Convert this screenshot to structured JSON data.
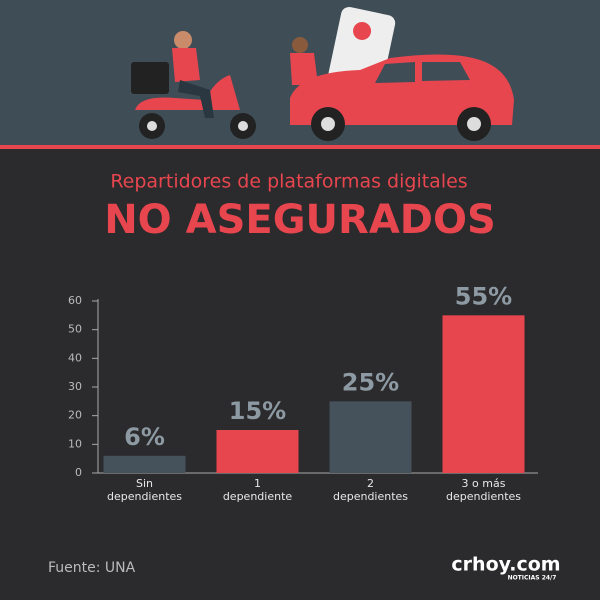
{
  "chart_data": {
    "type": "bar",
    "title": "Repartidores de plataformas digitales",
    "subtitle": "NO ASEGURADOS",
    "categories": [
      "Sin dependientes",
      "1 dependiente",
      "2 dependientes",
      "3 o más dependientes"
    ],
    "values": [
      6,
      15,
      25,
      55
    ],
    "value_labels": [
      "6%",
      "15%",
      "25%",
      "55%"
    ],
    "colors": [
      "#46525b",
      "#e8464f",
      "#46525b",
      "#e8464f"
    ],
    "ylim": [
      0,
      60
    ],
    "yticks": [
      0,
      10,
      20,
      30,
      40,
      50,
      60
    ],
    "grid": false
  },
  "source": "Fuente: UNA",
  "logo": {
    "name": "crhoy.com",
    "tagline": "NOTICIAS 24/7"
  }
}
